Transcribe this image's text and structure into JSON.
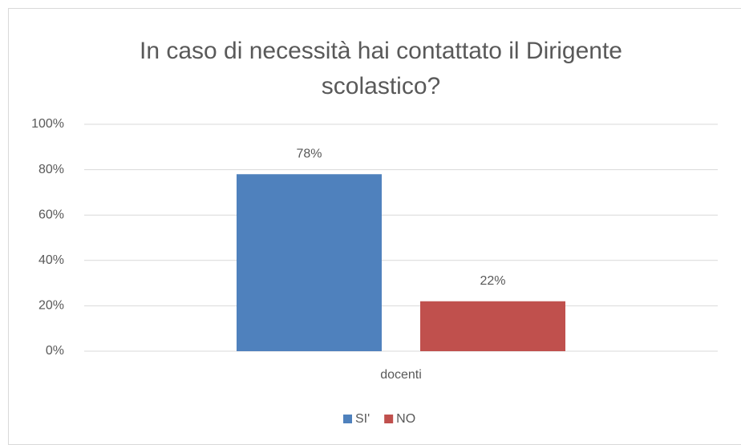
{
  "chart_data": {
    "type": "bar",
    "title": "In caso di necessità hai contattato il Dirigente scolastico?",
    "categories": [
      "docenti"
    ],
    "series": [
      {
        "name": "SI'",
        "color": "#4f81bd",
        "values": [
          78
        ],
        "value_labels": [
          "78%"
        ]
      },
      {
        "name": "NO",
        "color": "#c0504d",
        "values": [
          22
        ],
        "value_labels": [
          "22%"
        ]
      }
    ],
    "ylim": [
      0,
      100
    ],
    "yticks": [
      {
        "value": 0,
        "label": "0%"
      },
      {
        "value": 20,
        "label": "20%"
      },
      {
        "value": 40,
        "label": "40%"
      },
      {
        "value": 60,
        "label": "60%"
      },
      {
        "value": 80,
        "label": "80%"
      },
      {
        "value": 100,
        "label": "100%"
      }
    ],
    "grid": true,
    "legend": "bottom"
  }
}
